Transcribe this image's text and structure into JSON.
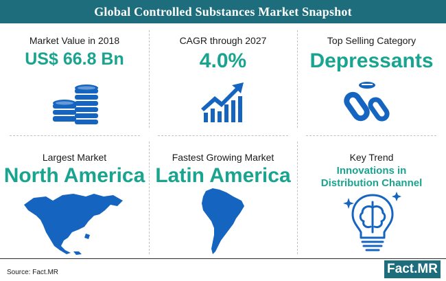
{
  "header": {
    "title": "Global Controlled Substances Market Snapshot"
  },
  "cards": [
    {
      "label": "Market Value in 2018",
      "value": "US$ 66.8 Bn",
      "icon": "coins-stack-icon"
    },
    {
      "label": "CAGR through 2027",
      "value": "4.0%",
      "icon": "growth-chart-icon"
    },
    {
      "label": "Top Selling Category",
      "value": "Depressants",
      "icon": "pills-icon"
    },
    {
      "label": "Largest Market",
      "value": "North America",
      "icon": "north-america-map-icon"
    },
    {
      "label": "Fastest Growing Market",
      "value": "Latin America",
      "icon": "south-america-map-icon"
    },
    {
      "label": "Key Trend",
      "value_line1": "Innovations in",
      "value_line2": "Distribution Channel",
      "icon": "brain-bulb-icon"
    }
  ],
  "footer": {
    "source": "Source: Fact.MR",
    "logo": "Fact.MR"
  },
  "colors": {
    "brand": "#1e6d7c",
    "accent": "#19a48f",
    "icon_blue": "#1565c0"
  }
}
